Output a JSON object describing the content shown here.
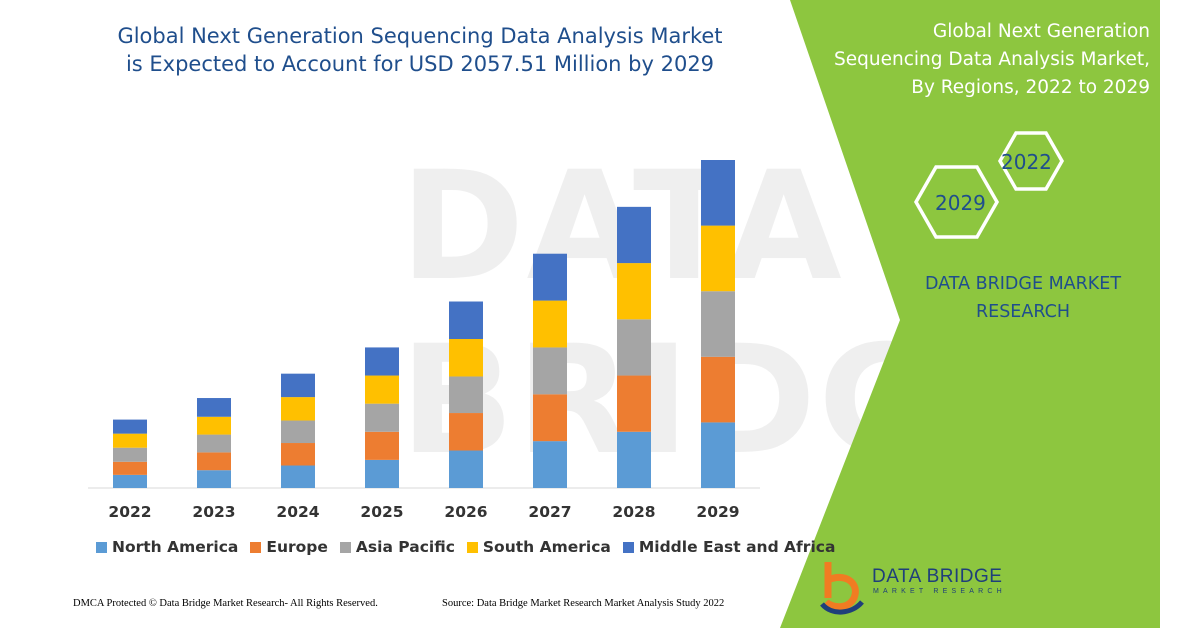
{
  "title": "Global Next Generation Sequencing Data Analysis Market is Expected to Account for USD 2057.51 Million by 2029",
  "panel": {
    "title": "Global Next Generation Sequencing Data Analysis Market, By Regions, 2022 to 2029",
    "hex_year_a": "2022",
    "hex_year_b": "2029",
    "brand": "DATA BRIDGE MARKET RESEARCH",
    "accent_color": "#8dc63f"
  },
  "logo": {
    "name": "DATA BRIDGE",
    "tagline": "MARKET RESEARCH"
  },
  "footer": {
    "left": "DMCA Protected © Data Bridge Market Research- All Rights Reserved.",
    "right": "Source: Data Bridge Market Research Market Analysis Study 2022"
  },
  "chart_data": {
    "type": "bar",
    "stacked": true,
    "title": "Global Next Generation Sequencing Data Analysis Market is Expected to Account for USD 2057.51 Million by 2029",
    "xlabel": "",
    "ylabel": "",
    "ylim": [
      0,
      350
    ],
    "grid": false,
    "legend": "bottom",
    "categories": [
      "2022",
      "2023",
      "2024",
      "2025",
      "2026",
      "2027",
      "2028",
      "2029"
    ],
    "series": [
      {
        "name": "North America",
        "color": "#5b9bd5",
        "values": [
          14,
          19,
          24,
          30,
          40,
          50,
          60,
          70
        ]
      },
      {
        "name": "Europe",
        "color": "#ed7d31",
        "values": [
          14,
          19,
          24,
          30,
          40,
          50,
          60,
          70
        ]
      },
      {
        "name": "Asia Pacific",
        "color": "#a5a5a5",
        "values": [
          15,
          19,
          24,
          30,
          39,
          50,
          60,
          70
        ]
      },
      {
        "name": "South America",
        "color": "#ffc000",
        "values": [
          15,
          19,
          25,
          30,
          40,
          50,
          60,
          70
        ]
      },
      {
        "name": "Middle East and Africa",
        "color": "#4472c4",
        "values": [
          15,
          20,
          25,
          30,
          40,
          50,
          60,
          70
        ]
      }
    ]
  }
}
